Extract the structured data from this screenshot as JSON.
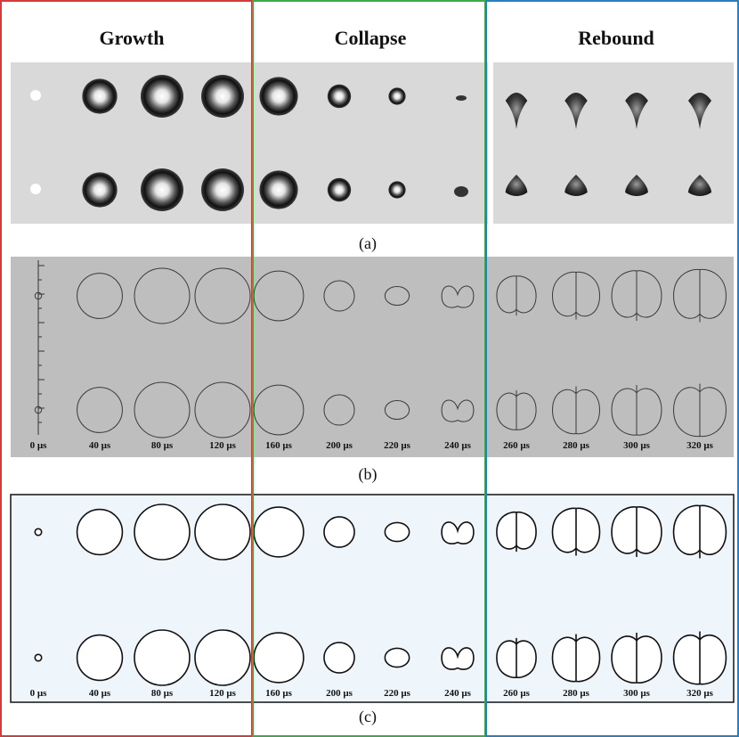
{
  "phases": [
    {
      "id": "growth",
      "title": "Growth",
      "border_color": "#d63b3b"
    },
    {
      "id": "collapse",
      "title": "Collapse",
      "border_color": "#3aaa4a"
    },
    {
      "id": "rebound",
      "title": "Rebound",
      "border_color": "#2a7fc0"
    }
  ],
  "panel_labels": [
    "(a)",
    "(b)",
    "(c)"
  ],
  "time_labels": [
    "0 µs",
    "40 µs",
    "80 µs",
    "120 µs",
    "160 µs",
    "200 µs",
    "220 µs",
    "240 µs",
    "260 µs",
    "280 µs",
    "300 µs",
    "320 µs"
  ],
  "frames": [
    {
      "time": "0 µs",
      "radius": 0.12,
      "shape": "circle"
    },
    {
      "time": "40 µs",
      "radius": 0.82,
      "shape": "circle"
    },
    {
      "time": "80 µs",
      "radius": 1.0,
      "shape": "circle"
    },
    {
      "time": "120 µs",
      "radius": 1.0,
      "shape": "circle"
    },
    {
      "time": "160 µs",
      "radius": 0.9,
      "shape": "circle"
    },
    {
      "time": "200 µs",
      "radius": 0.55,
      "shape": "circle"
    },
    {
      "time": "220 µs",
      "radius": 0.4,
      "shape": "ellipse"
    },
    {
      "time": "240 µs",
      "radius": 0.55,
      "shape": "jet-dimple"
    },
    {
      "time": "260 µs",
      "radius": 0.75,
      "shape": "jet"
    },
    {
      "time": "280 µs",
      "radius": 0.9,
      "shape": "jet"
    },
    {
      "time": "300 µs",
      "radius": 0.95,
      "shape": "jet"
    },
    {
      "time": "320 µs",
      "radius": 1.0,
      "shape": "jet"
    }
  ],
  "colors": {
    "photo_bg": "#d9d9d9",
    "sim_b_bg": "#bebebe",
    "sim_c_bg": "#eef6fc",
    "bubble_dark": "#1a1a1a"
  }
}
